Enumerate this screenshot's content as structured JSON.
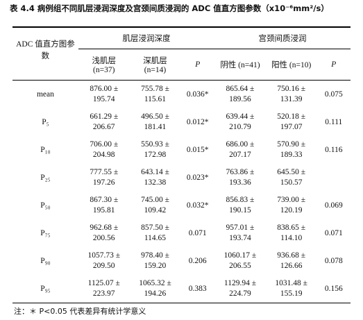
{
  "title": "表 4.4  病例组不同肌层浸润深度及宫颈间质浸润的 ADC 值直方图参数（x10⁻⁶mm²/s）",
  "header": {
    "param": "ADC 值直方图参数",
    "group1": "肌层浸润深度",
    "group2": "宫颈间质浸润",
    "columns": [
      "浅肌层 (n=37)",
      "深肌层 (n=14)",
      "P",
      "阴性 (n=41)",
      "阳性 (n=10)",
      "P"
    ]
  },
  "table": {
    "rows": [
      {
        "label": "mean",
        "cells": [
          [
            "876.00 ±",
            "195.74"
          ],
          [
            "755.78 ±",
            "115.61"
          ],
          "0.036*",
          [
            "865.64 ±",
            "189.56"
          ],
          [
            "750.16 ±",
            "131.39"
          ],
          "0.075"
        ]
      },
      {
        "label": "P₅",
        "cells": [
          [
            "661.29 ±",
            "206.67"
          ],
          [
            "496.50 ±",
            "181.41"
          ],
          "0.012*",
          [
            "639.44 ±",
            "210.79"
          ],
          [
            "520.18 ±",
            "197.07"
          ],
          "0.111"
        ]
      },
      {
        "label": "P₁₀",
        "cells": [
          [
            "706.00 ±",
            "204.98"
          ],
          [
            "550.93 ±",
            "172.98"
          ],
          "0.015*",
          [
            "686.00 ±",
            "207.17"
          ],
          [
            "570.90 ±",
            "189.33"
          ],
          "0.116"
        ]
      },
      {
        "label": "P₂₅",
        "cells": [
          [
            "777.55 ±",
            "197.26"
          ],
          [
            "643.14 ±",
            "132.38"
          ],
          "0.023*",
          [
            "763.86 ±",
            "193.36"
          ],
          [
            "645.50 ±",
            "150.57"
          ],
          null
        ]
      },
      {
        "label": "P₅₀",
        "cells": [
          [
            "867.30 ±",
            "195.81"
          ],
          [
            "745.00 ±",
            "109.42"
          ],
          "0.032*",
          [
            "856.83 ±",
            "190.15"
          ],
          [
            "739.00 ±",
            "120.19"
          ],
          "0.069"
        ]
      },
      {
        "label": "P₇₅",
        "cells": [
          [
            "962.68 ±",
            "200.56"
          ],
          [
            "857.50 ±",
            "114.65"
          ],
          "0.071",
          [
            "957.01 ±",
            "193.74"
          ],
          [
            "838.65 ±",
            "114.10"
          ],
          "0.071"
        ]
      },
      {
        "label": "P₉₀",
        "cells": [
          [
            "1057.73 ±",
            "209.50"
          ],
          [
            "978.40 ±",
            "159.20"
          ],
          "0.206",
          [
            "1060.17 ±",
            "206.55"
          ],
          [
            "936.68 ±",
            "126.66"
          ],
          "0.078"
        ]
      },
      {
        "label": "P₉₅",
        "cells": [
          [
            "1125.07 ±",
            "223.97"
          ],
          [
            "1065.32 ±",
            "194.26"
          ],
          "0.383",
          [
            "1129.94 ±",
            "224.79"
          ],
          [
            "1031.48 ±",
            "155.19"
          ],
          "0.156"
        ]
      }
    ]
  },
  "note": "注：＊ P<0.05 代表差异有统计学意义"
}
